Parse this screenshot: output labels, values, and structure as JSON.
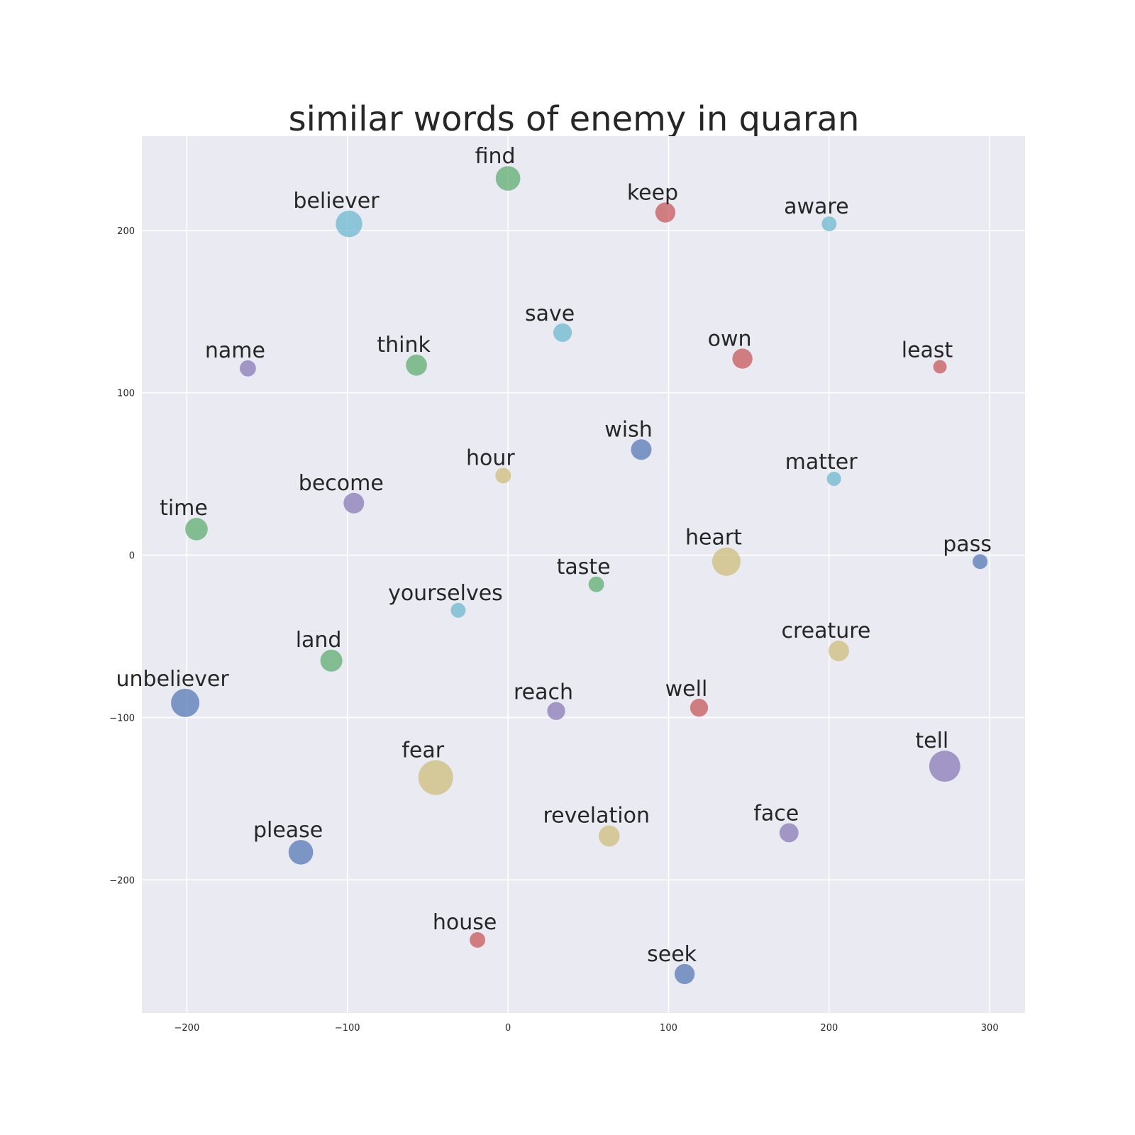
{
  "chart_data": {
    "type": "scatter",
    "title": "similar words of enemy in quaran",
    "xlabel": "",
    "ylabel": "",
    "xlim": [
      -228,
      322
    ],
    "ylim": [
      -282,
      258
    ],
    "x_ticks": [
      -200,
      -100,
      0,
      100,
      200,
      300
    ],
    "y_ticks": [
      200,
      100,
      0,
      -100,
      -200
    ],
    "x_tick_labels": [
      "−200",
      "−100",
      "0",
      "100",
      "200",
      "300"
    ],
    "y_tick_labels": [
      "200",
      "100",
      "0",
      "−100",
      "−200"
    ],
    "grid": true,
    "legend": "none",
    "colors": {
      "background": "#EAEAF2",
      "grid": "#FFFFFF",
      "blue": "#4C72B0",
      "green": "#55A868",
      "red": "#C44E52",
      "purple": "#8172B2",
      "yellow": "#CCB974",
      "cyan": "#64B5CD"
    },
    "points": [
      {
        "label": "find",
        "x": 0,
        "y": 232,
        "size": 300,
        "color": "green"
      },
      {
        "label": "believer",
        "x": -99,
        "y": 204,
        "size": 350,
        "color": "cyan"
      },
      {
        "label": "keep",
        "x": 98,
        "y": 211,
        "size": 200,
        "color": "red"
      },
      {
        "label": "aware",
        "x": 200,
        "y": 204,
        "size": 110,
        "color": "cyan"
      },
      {
        "label": "save",
        "x": 34,
        "y": 137,
        "size": 170,
        "color": "cyan"
      },
      {
        "label": "name",
        "x": -162,
        "y": 115,
        "size": 130,
        "color": "purple"
      },
      {
        "label": "think",
        "x": -57,
        "y": 117,
        "size": 220,
        "color": "green"
      },
      {
        "label": "own",
        "x": 146,
        "y": 121,
        "size": 200,
        "color": "red"
      },
      {
        "label": "least",
        "x": 269,
        "y": 116,
        "size": 90,
        "color": "red"
      },
      {
        "label": "wish",
        "x": 83,
        "y": 65,
        "size": 210,
        "color": "blue"
      },
      {
        "label": "hour",
        "x": -3,
        "y": 49,
        "size": 120,
        "color": "yellow"
      },
      {
        "label": "matter",
        "x": 203,
        "y": 47,
        "size": 100,
        "color": "cyan"
      },
      {
        "label": "become",
        "x": -96,
        "y": 32,
        "size": 210,
        "color": "purple"
      },
      {
        "label": "time",
        "x": -194,
        "y": 16,
        "size": 250,
        "color": "green"
      },
      {
        "label": "heart",
        "x": 136,
        "y": -4,
        "size": 400,
        "color": "yellow"
      },
      {
        "label": "pass",
        "x": 294,
        "y": -4,
        "size": 110,
        "color": "blue"
      },
      {
        "label": "taste",
        "x": 55,
        "y": -18,
        "size": 120,
        "color": "green"
      },
      {
        "label": "yourselves",
        "x": -31,
        "y": -34,
        "size": 110,
        "color": "cyan"
      },
      {
        "label": "creature",
        "x": 206,
        "y": -59,
        "size": 210,
        "color": "yellow"
      },
      {
        "label": "land",
        "x": -110,
        "y": -65,
        "size": 240,
        "color": "green"
      },
      {
        "label": "unbeliever",
        "x": -201,
        "y": -91,
        "size": 400,
        "color": "blue"
      },
      {
        "label": "reach",
        "x": 30,
        "y": -96,
        "size": 160,
        "color": "purple"
      },
      {
        "label": "well",
        "x": 119,
        "y": -94,
        "size": 160,
        "color": "red"
      },
      {
        "label": "tell",
        "x": 272,
        "y": -130,
        "size": 480,
        "color": "purple"
      },
      {
        "label": "fear",
        "x": -45,
        "y": -137,
        "size": 600,
        "color": "yellow"
      },
      {
        "label": "face",
        "x": 175,
        "y": -171,
        "size": 180,
        "color": "purple"
      },
      {
        "label": "please",
        "x": -129,
        "y": -183,
        "size": 300,
        "color": "blue"
      },
      {
        "label": "revelation",
        "x": 63,
        "y": -173,
        "size": 220,
        "color": "yellow"
      },
      {
        "label": "house",
        "x": -19,
        "y": -237,
        "size": 120,
        "color": "red"
      },
      {
        "label": "seek",
        "x": 110,
        "y": -258,
        "size": 200,
        "color": "blue"
      }
    ]
  }
}
